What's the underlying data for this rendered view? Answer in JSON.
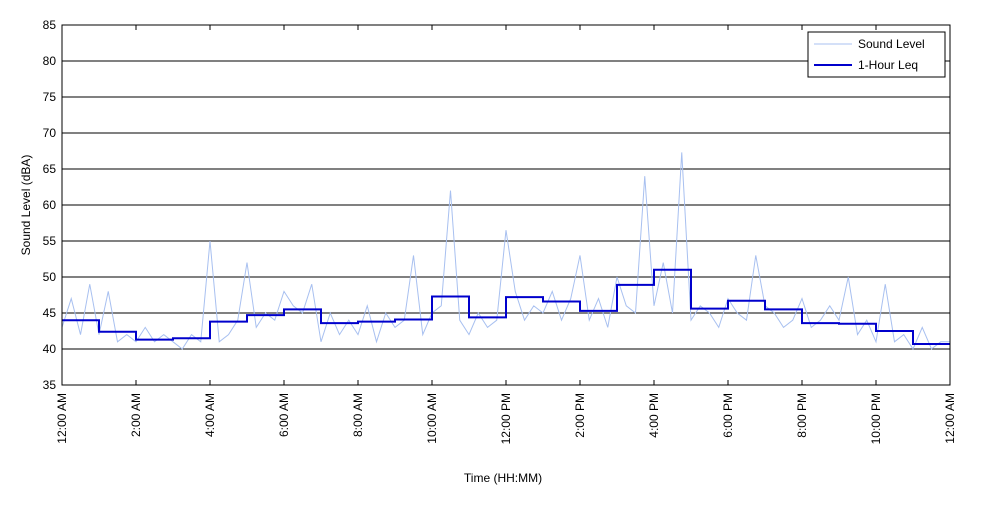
{
  "chart_data": {
    "type": "line",
    "xlabel": "Time (HH:MM)",
    "ylabel": "Sound Level (dBA)",
    "xlim": [
      0,
      24
    ],
    "ylim": [
      35,
      85
    ],
    "xticks": [
      {
        "value": 0,
        "label": "12:00 AM"
      },
      {
        "value": 2,
        "label": "2:00 AM"
      },
      {
        "value": 4,
        "label": "4:00 AM"
      },
      {
        "value": 6,
        "label": "6:00 AM"
      },
      {
        "value": 8,
        "label": "8:00 AM"
      },
      {
        "value": 10,
        "label": "10:00 AM"
      },
      {
        "value": 12,
        "label": "12:00 PM"
      },
      {
        "value": 14,
        "label": "2:00 PM"
      },
      {
        "value": 16,
        "label": "4:00 PM"
      },
      {
        "value": 18,
        "label": "6:00 PM"
      },
      {
        "value": 20,
        "label": "8:00 PM"
      },
      {
        "value": 22,
        "label": "10:00 PM"
      },
      {
        "value": 24,
        "label": "12:00 AM"
      }
    ],
    "yticks": [
      35,
      40,
      45,
      50,
      55,
      60,
      65,
      70,
      75,
      80,
      85
    ],
    "grid": true,
    "legend": "upper right",
    "series": [
      {
        "name": "Sound Level",
        "color": "#a8c0f0",
        "step": false,
        "x": [
          0,
          0.25,
          0.5,
          0.75,
          1,
          1.25,
          1.5,
          1.75,
          2,
          2.25,
          2.5,
          2.75,
          3,
          3.25,
          3.5,
          3.75,
          4,
          4.25,
          4.5,
          4.75,
          5,
          5.25,
          5.5,
          5.75,
          6,
          6.25,
          6.5,
          6.75,
          7,
          7.25,
          7.5,
          7.75,
          8,
          8.25,
          8.5,
          8.75,
          9,
          9.25,
          9.5,
          9.75,
          10,
          10.25,
          10.5,
          10.75,
          11,
          11.25,
          11.5,
          11.75,
          12,
          12.25,
          12.5,
          12.75,
          13,
          13.25,
          13.5,
          13.75,
          14,
          14.25,
          14.5,
          14.75,
          15,
          15.25,
          15.5,
          15.75,
          16,
          16.25,
          16.5,
          16.75,
          17,
          17.25,
          17.5,
          17.75,
          18,
          18.25,
          18.5,
          18.75,
          19,
          19.25,
          19.5,
          19.75,
          20,
          20.25,
          20.5,
          20.75,
          21,
          21.25,
          21.5,
          21.75,
          22,
          22.25,
          22.5,
          22.75,
          23,
          23.25,
          23.5,
          23.75,
          24
        ],
        "values": [
          43,
          47,
          42,
          49,
          42,
          48,
          41,
          42,
          41,
          43,
          41,
          42,
          41,
          40,
          42,
          41,
          55,
          41,
          42,
          44,
          52,
          43,
          45,
          44,
          48,
          46,
          45,
          49,
          41,
          45,
          42,
          44,
          42,
          46,
          41,
          45,
          43,
          44,
          53,
          42,
          45,
          46,
          62,
          44,
          42,
          45,
          43,
          44,
          56.5,
          48,
          44,
          46,
          45,
          48,
          44,
          47,
          53,
          44,
          47,
          43,
          50,
          46,
          45,
          64,
          46,
          52,
          45,
          67.3,
          44,
          46,
          45,
          43,
          47,
          45,
          44,
          53,
          46,
          45,
          43,
          44,
          47,
          43,
          44,
          46,
          44,
          50,
          42,
          44,
          41,
          49,
          41,
          42,
          40,
          43,
          40,
          41,
          41
        ]
      },
      {
        "name": "1-Hour Leq",
        "color": "#0000cc",
        "step": true,
        "x": [
          0,
          1,
          2,
          3,
          4,
          5,
          6,
          7,
          8,
          9,
          10,
          11,
          12,
          13,
          14,
          15,
          16,
          17,
          18,
          19,
          20,
          21,
          22,
          23
        ],
        "values": [
          44,
          42.4,
          41.3,
          41.5,
          43.8,
          44.7,
          45.5,
          43.6,
          43.8,
          44.1,
          47.3,
          44.4,
          47.2,
          46.6,
          45.3,
          48.9,
          51,
          45.6,
          46.7,
          45.5,
          43.6,
          43.5,
          42.5,
          40.7
        ]
      }
    ]
  }
}
